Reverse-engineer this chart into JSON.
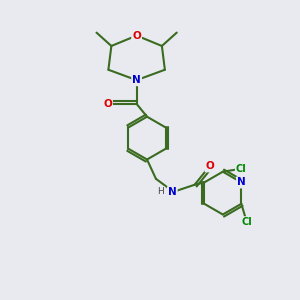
{
  "background_color": "#e8eaf0",
  "bond_color": "#3a6b20",
  "atom_colors": {
    "O": "#dd0000",
    "N": "#0000cc",
    "Cl": "#008800",
    "H": "#444444"
  },
  "figsize": [
    3.0,
    3.0
  ],
  "dpi": 100
}
